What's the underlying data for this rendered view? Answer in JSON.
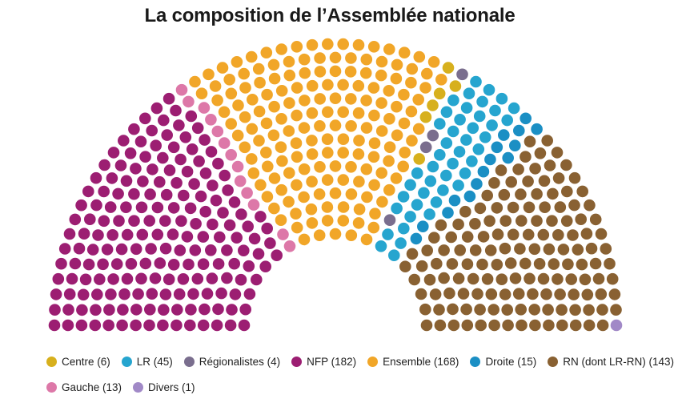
{
  "title": "La composition de l’Assemblée nationale",
  "chart_data": {
    "type": "hemicycle",
    "title": "La composition de l’Assemblée nationale",
    "total_seats": 577,
    "groups": [
      {
        "label": "NFP (182)",
        "seats": 182,
        "color": "#9c1e72"
      },
      {
        "label": "Gauche (13)",
        "seats": 13,
        "color": "#dd78a8"
      },
      {
        "label": "Ensemble (168)",
        "seats": 168,
        "color": "#f1a628"
      },
      {
        "label": "Centre (6)",
        "seats": 6,
        "color": "#d7b01d"
      },
      {
        "label": "Régionalistes (4)",
        "seats": 4,
        "color": "#7a6e8e"
      },
      {
        "label": "LR (45)",
        "seats": 45,
        "color": "#26a5cf"
      },
      {
        "label": "Droite (15)",
        "seats": 15,
        "color": "#1b8fc4"
      },
      {
        "label": "RN (dont LR-RN) (143)",
        "seats": 143,
        "color": "#896132"
      },
      {
        "label": "Divers (1)",
        "seats": 1,
        "color": "#a189c7"
      }
    ],
    "legend": {
      "position": "bottom",
      "rows": [
        [
          "Centre (6)",
          "LR (45)",
          "Régionalistes (4)",
          "NFP (182)",
          "Ensemble (168)",
          "Droite (15)",
          "RN (dont LR-RN) (143)"
        ],
        [
          "Gauche (13)",
          "Divers (1)"
        ]
      ]
    }
  },
  "legend": {
    "row1": [
      {
        "label": "Centre (6)",
        "color": "#d7b01d"
      },
      {
        "label": "LR (45)",
        "color": "#26a5cf"
      },
      {
        "label": "Régionalistes (4)",
        "color": "#7a6e8e"
      },
      {
        "label": "NFP (182)",
        "color": "#9c1e72"
      },
      {
        "label": "Ensemble (168)",
        "color": "#f1a628"
      },
      {
        "label": "Droite (15)",
        "color": "#1b8fc4"
      },
      {
        "label": "RN (dont LR-RN) (143)",
        "color": "#896132"
      }
    ],
    "row2": [
      {
        "label": "Gauche (13)",
        "color": "#dd78a8"
      },
      {
        "label": "Divers (1)",
        "color": "#a189c7"
      }
    ]
  }
}
